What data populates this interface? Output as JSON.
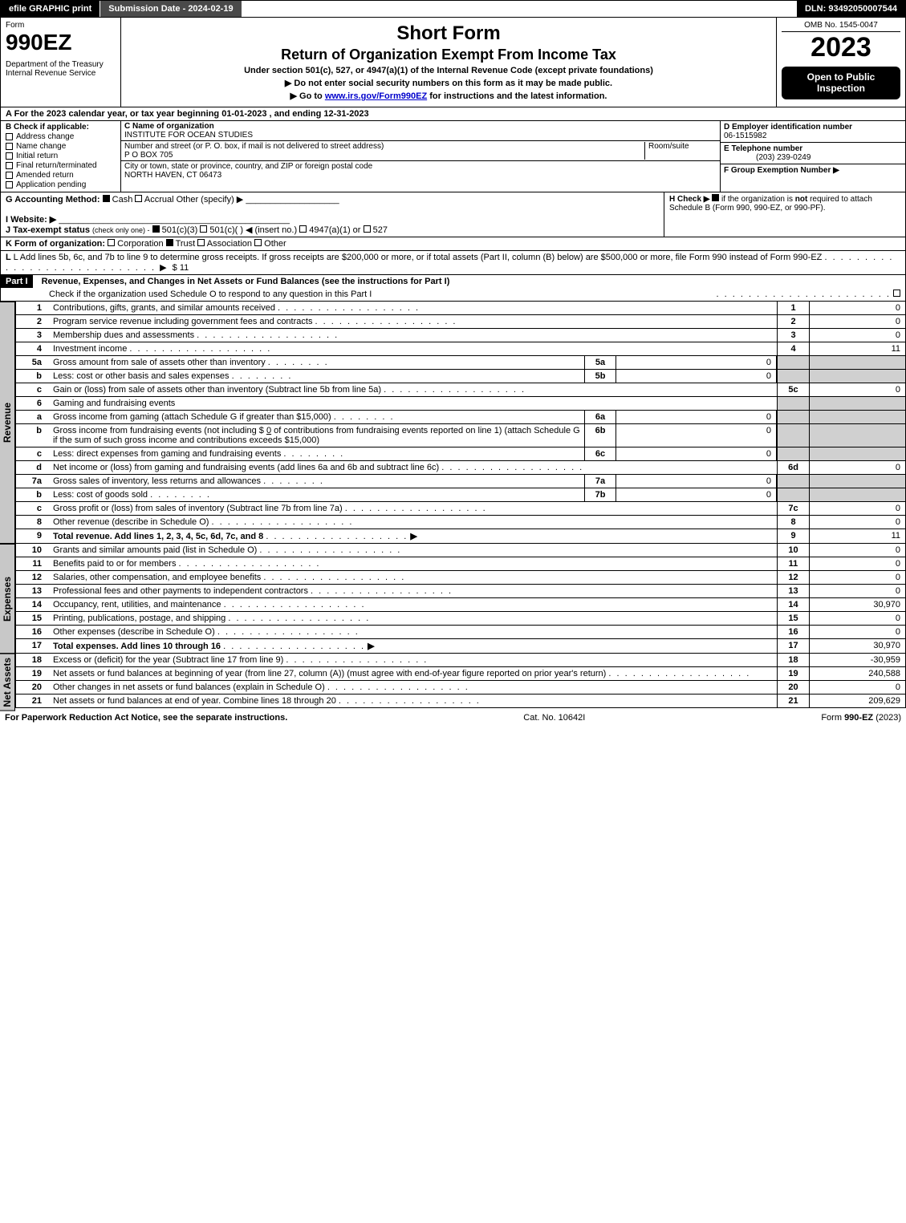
{
  "topbar": {
    "efile": "efile GRAPHIC print",
    "submission": "Submission Date - 2024-02-19",
    "dln": "DLN: 93492050007544"
  },
  "header": {
    "form_label": "Form",
    "form_no": "990EZ",
    "dept": "Department of the Treasury",
    "irs": "Internal Revenue Service",
    "title1": "Short Form",
    "title2": "Return of Organization Exempt From Income Tax",
    "subtitle": "Under section 501(c), 527, or 4947(a)(1) of the Internal Revenue Code (except private foundations)",
    "instr1": "▶ Do not enter social security numbers on this form as it may be made public.",
    "instr2_a": "▶ Go to ",
    "instr2_link": "www.irs.gov/Form990EZ",
    "instr2_b": " for instructions and the latest information.",
    "omb": "OMB No. 1545-0047",
    "year": "2023",
    "badge1": "Open to Public Inspection"
  },
  "A": {
    "text": "For the 2023 calendar year, or tax year beginning 01-01-2023 , and ending 12-31-2023"
  },
  "B": {
    "label": "Check if applicable:",
    "items": [
      {
        "label": "Address change",
        "checked": false
      },
      {
        "label": "Name change",
        "checked": false
      },
      {
        "label": "Initial return",
        "checked": false
      },
      {
        "label": "Final return/terminated",
        "checked": false
      },
      {
        "label": "Amended return",
        "checked": false
      },
      {
        "label": "Application pending",
        "checked": false
      }
    ]
  },
  "C": {
    "name_label": "C Name of organization",
    "name": "INSTITUTE FOR OCEAN STUDIES",
    "street_label": "Number and street (or P. O. box, if mail is not delivered to street address)",
    "room_label": "Room/suite",
    "street": "P O BOX 705",
    "city_label": "City or town, state or province, country, and ZIP or foreign postal code",
    "city": "NORTH HAVEN, CT  06473"
  },
  "D": {
    "label": "D Employer identification number",
    "value": "06-1515982"
  },
  "E": {
    "label": "E Telephone number",
    "value": "(203) 239-0249"
  },
  "F": {
    "label": "F Group Exemption Number  ▶",
    "value": ""
  },
  "G": {
    "label": "G Accounting Method:",
    "cash": "Cash",
    "accrual": "Accrual",
    "other": "Other (specify) ▶",
    "cash_checked": true
  },
  "H": {
    "label": "H   Check ▶",
    "text": "if the organization is not required to attach Schedule B (Form 990, 990-EZ, or 990-PF).",
    "checked": true,
    "not_bold": "not"
  },
  "I": {
    "label": "I Website: ▶",
    "value": ""
  },
  "J": {
    "label": "J Tax-exempt status",
    "sub": "(check only one) -",
    "opt1": "501(c)(3)",
    "opt2": "501(c)(  ) ◀ (insert no.)",
    "opt3": "4947(a)(1) or",
    "opt4": "527",
    "checked": "501c3"
  },
  "K": {
    "label": "K Form of organization:",
    "corp": "Corporation",
    "trust": "Trust",
    "assoc": "Association",
    "other": "Other",
    "trust_checked": true
  },
  "L": {
    "text": "L Add lines 5b, 6c, and 7b to line 9 to determine gross receipts. If gross receipts are $200,000 or more, or if total assets (Part II, column (B) below) are $500,000 or more, file Form 990 instead of Form 990-EZ",
    "value": "$ 11"
  },
  "part1": {
    "head": "Part I",
    "title": "Revenue, Expenses, and Changes in Net Assets or Fund Balances (see the instructions for Part I)",
    "check_text": "Check if the organization used Schedule O to respond to any question in this Part I"
  },
  "revenue": {
    "tab": "Revenue",
    "lines": [
      {
        "n": "1",
        "desc": "Contributions, gifts, grants, and similar amounts received",
        "line": "1",
        "val": "0"
      },
      {
        "n": "2",
        "desc": "Program service revenue including government fees and contracts",
        "line": "2",
        "val": "0"
      },
      {
        "n": "3",
        "desc": "Membership dues and assessments",
        "line": "3",
        "val": "0"
      },
      {
        "n": "4",
        "desc": "Investment income",
        "line": "4",
        "val": "11"
      }
    ],
    "l5a": {
      "n": "5a",
      "desc": "Gross amount from sale of assets other than inventory",
      "sub": "5a",
      "subval": "0"
    },
    "l5b": {
      "n": "b",
      "desc": "Less: cost or other basis and sales expenses",
      "sub": "5b",
      "subval": "0"
    },
    "l5c": {
      "n": "c",
      "desc": "Gain or (loss) from sale of assets other than inventory (Subtract line 5b from line 5a)",
      "line": "5c",
      "val": "0"
    },
    "l6": {
      "n": "6",
      "desc": "Gaming and fundraising events"
    },
    "l6a": {
      "n": "a",
      "desc": "Gross income from gaming (attach Schedule G if greater than $15,000)",
      "sub": "6a",
      "subval": "0"
    },
    "l6b": {
      "n": "b",
      "desc_a": "Gross income from fundraising events (not including $",
      "desc_amt": "0",
      "desc_b": "of contributions from fundraising events reported on line 1) (attach Schedule G if the sum of such gross income and contributions exceeds $15,000)",
      "sub": "6b",
      "subval": "0"
    },
    "l6c": {
      "n": "c",
      "desc": "Less: direct expenses from gaming and fundraising events",
      "sub": "6c",
      "subval": "0"
    },
    "l6d": {
      "n": "d",
      "desc": "Net income or (loss) from gaming and fundraising events (add lines 6a and 6b and subtract line 6c)",
      "line": "6d",
      "val": "0"
    },
    "l7a": {
      "n": "7a",
      "desc": "Gross sales of inventory, less returns and allowances",
      "sub": "7a",
      "subval": "0"
    },
    "l7b": {
      "n": "b",
      "desc": "Less: cost of goods sold",
      "sub": "7b",
      "subval": "0"
    },
    "l7c": {
      "n": "c",
      "desc": "Gross profit or (loss) from sales of inventory (Subtract line 7b from line 7a)",
      "line": "7c",
      "val": "0"
    },
    "l8": {
      "n": "8",
      "desc": "Other revenue (describe in Schedule O)",
      "line": "8",
      "val": "0"
    },
    "l9": {
      "n": "9",
      "desc": "Total revenue. Add lines 1, 2, 3, 4, 5c, 6d, 7c, and 8",
      "line": "9",
      "val": "11"
    }
  },
  "expenses": {
    "tab": "Expenses",
    "lines": [
      {
        "n": "10",
        "desc": "Grants and similar amounts paid (list in Schedule O)",
        "line": "10",
        "val": "0"
      },
      {
        "n": "11",
        "desc": "Benefits paid to or for members",
        "line": "11",
        "val": "0"
      },
      {
        "n": "12",
        "desc": "Salaries, other compensation, and employee benefits",
        "line": "12",
        "val": "0"
      },
      {
        "n": "13",
        "desc": "Professional fees and other payments to independent contractors",
        "line": "13",
        "val": "0"
      },
      {
        "n": "14",
        "desc": "Occupancy, rent, utilities, and maintenance",
        "line": "14",
        "val": "30,970"
      },
      {
        "n": "15",
        "desc": "Printing, publications, postage, and shipping",
        "line": "15",
        "val": "0"
      },
      {
        "n": "16",
        "desc": "Other expenses (describe in Schedule O)",
        "line": "16",
        "val": "0"
      },
      {
        "n": "17",
        "desc": "Total expenses. Add lines 10 through 16",
        "line": "17",
        "val": "30,970",
        "bold": true
      }
    ]
  },
  "netassets": {
    "tab": "Net Assets",
    "lines": [
      {
        "n": "18",
        "desc": "Excess or (deficit) for the year (Subtract line 17 from line 9)",
        "line": "18",
        "val": "-30,959"
      },
      {
        "n": "19",
        "desc": "Net assets or fund balances at beginning of year (from line 27, column (A)) (must agree with end-of-year figure reported on prior year's return)",
        "line": "19",
        "val": "240,588"
      },
      {
        "n": "20",
        "desc": "Other changes in net assets or fund balances (explain in Schedule O)",
        "line": "20",
        "val": "0"
      },
      {
        "n": "21",
        "desc": "Net assets or fund balances at end of year. Combine lines 18 through 20",
        "line": "21",
        "val": "209,629"
      }
    ]
  },
  "footer": {
    "left": "For Paperwork Reduction Act Notice, see the separate instructions.",
    "mid": "Cat. No. 10642I",
    "right_a": "Form ",
    "right_b": "990-EZ",
    "right_c": " (2023)"
  },
  "colors": {
    "black": "#000000",
    "white": "#ffffff",
    "darkgray": "#4a4a4a",
    "shade": "#d0d0d0",
    "tab": "#c8c8c8",
    "link": "#0000cc"
  }
}
